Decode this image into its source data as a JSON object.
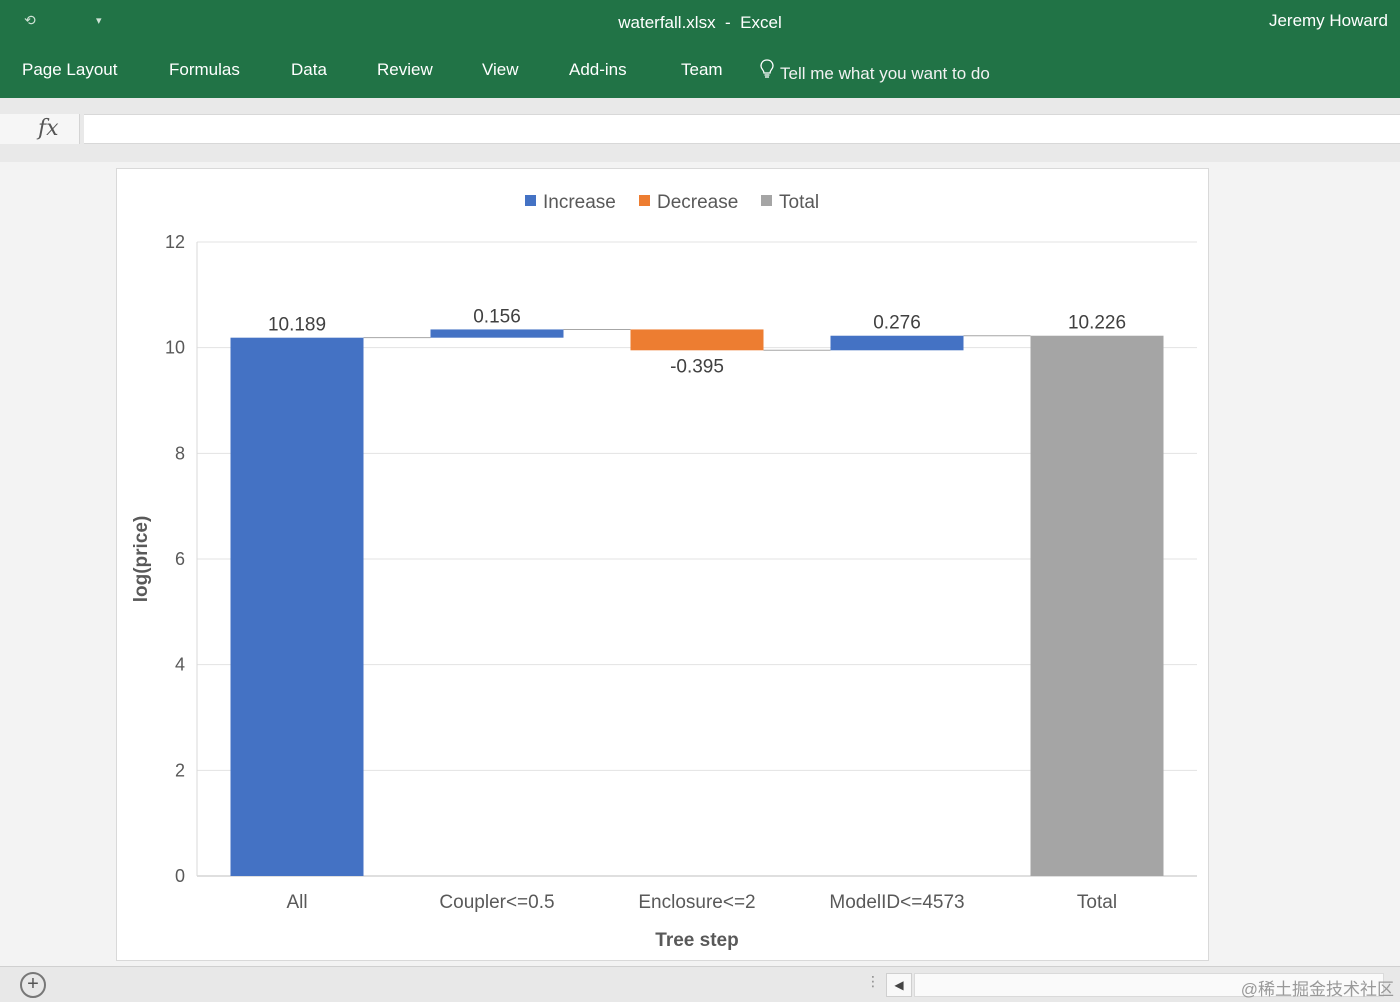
{
  "window": {
    "title_file": "waterfall.xlsx",
    "title_sep": "-",
    "title_app": "Excel",
    "user": "Jeremy Howard"
  },
  "ribbon": {
    "tabs": [
      "Page Layout",
      "Formulas",
      "Data",
      "Review",
      "View",
      "Add-ins",
      "Team"
    ],
    "tell_me": "Tell me what you want to do"
  },
  "formula_bar": {
    "fx_label": "fx",
    "value": ""
  },
  "chart_data": {
    "type": "bar",
    "subtype": "waterfall",
    "categories": [
      "All",
      "Coupler<=0.5",
      "Enclosure<=2",
      "ModelID<=4573",
      "Total"
    ],
    "values": [
      10.189,
      0.156,
      -0.395,
      0.276,
      10.226
    ],
    "data_labels": [
      "10.189",
      "0.156",
      "-0.395",
      "0.276",
      "10.226"
    ],
    "kinds": [
      "increase",
      "increase",
      "decrease",
      "increase",
      "total"
    ],
    "legend": [
      {
        "key": "increase",
        "label": "Increase",
        "color": "#4472c4"
      },
      {
        "key": "decrease",
        "label": "Decrease",
        "color": "#ed7d31"
      },
      {
        "key": "total",
        "label": "Total",
        "color": "#a5a5a5"
      }
    ],
    "legend_position": "top",
    "xlabel": "Tree step",
    "ylabel": "log(price)",
    "ylim": [
      0,
      12
    ],
    "yticks": [
      0,
      2,
      4,
      6,
      8,
      10,
      12
    ],
    "grid": true
  },
  "statusbar": {
    "add_sheet": "+",
    "scroll_left": "◀",
    "watermark": "@稀土掘金技术社区"
  }
}
